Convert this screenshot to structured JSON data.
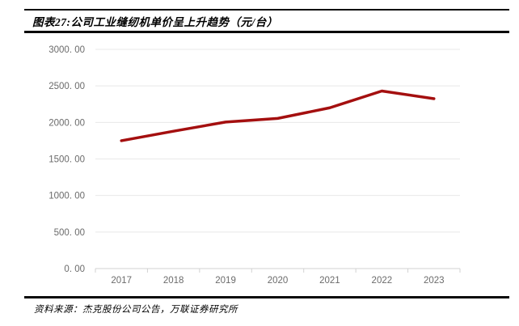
{
  "page": {
    "title": "图表27:公司工业缝纫机单价呈上升趋势（元/台）",
    "source": "资料来源：杰克股份公司公告，万联证券研究所"
  },
  "colors": {
    "line": "#A40F0F",
    "grid": "#E8E8E8",
    "axis": "#D2D2D2",
    "tick_label": "#6B6B6B",
    "rule": "#0A0A0A"
  },
  "chart_data": {
    "type": "line",
    "title": "图表27:公司工业缝纫机单价呈上升趋势（元/台）",
    "categories": [
      "2017",
      "2018",
      "2019",
      "2020",
      "2021",
      "2022",
      "2023"
    ],
    "values": [
      1750,
      1880,
      2005,
      2055,
      2200,
      2430,
      2325
    ],
    "ylim": [
      0,
      3000
    ],
    "ytick_step": 500,
    "ytick_labels": [
      "0. 00",
      "500. 00",
      "1000. 00",
      "1500. 00",
      "2000. 00",
      "2500. 00",
      "3000. 00"
    ],
    "xlabel": "",
    "ylabel": "",
    "grid": true,
    "legend": "none"
  }
}
